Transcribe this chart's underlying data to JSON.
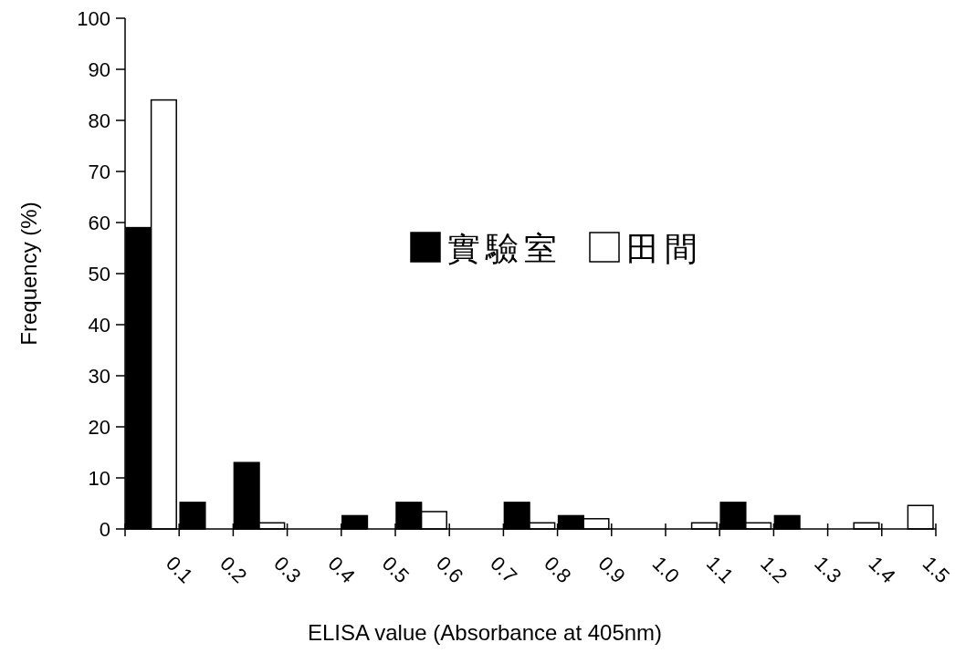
{
  "chart_data": {
    "type": "bar",
    "xlabel": "ELISA value (Absorbance at 405nm)",
    "ylabel": "Frequency (%)",
    "x": [
      0.05,
      0.15,
      0.25,
      0.35,
      0.45,
      0.55,
      0.65,
      0.75,
      0.85,
      0.95,
      1.05,
      1.15,
      1.25,
      1.35,
      1.45
    ],
    "series": [
      {
        "name": "實驗室",
        "color": "#000000",
        "values": [
          59,
          5.2,
          13,
          0,
          2.6,
          5.2,
          0,
          5.2,
          2.6,
          0,
          0,
          5.2,
          2.6,
          0,
          0
        ]
      },
      {
        "name": "田間",
        "color": "#ffffff",
        "values": [
          84,
          0,
          1.2,
          0,
          0,
          3.4,
          0,
          1.2,
          2.0,
          0,
          1.2,
          1.2,
          0,
          1.2,
          4.6
        ]
      }
    ],
    "xlim": [
      0,
      1.5
    ],
    "xticks": [
      {
        "value": 0,
        "label": null
      },
      0.1,
      0.2,
      0.3,
      0.4,
      0.5,
      0.6,
      0.7,
      0.8,
      0.9,
      {
        "value": 1,
        "label": "1.0"
      },
      1.1,
      1.2,
      1.3,
      1.4,
      1.5
    ],
    "ylim": [
      0,
      100
    ],
    "yticks": [
      0,
      10,
      20,
      30,
      40,
      50,
      60,
      70,
      80,
      90,
      100
    ],
    "legend": "top",
    "grid": false
  }
}
